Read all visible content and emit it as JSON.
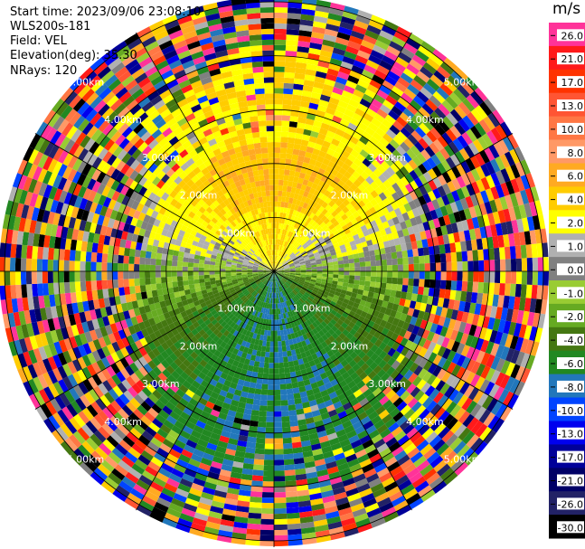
{
  "header": {
    "start_time": "Start time: 2023/09/06 23:08:10",
    "instrument": "WLS200s-181",
    "field": "Field: VEL",
    "elevation": "Elevation(deg): 35.30",
    "nrays": "NRays: 120"
  },
  "colorbar": {
    "unit": "m/s",
    "ticks": [
      "26.0",
      "21.0",
      "17.0",
      "13.0",
      "10.0",
      "8.0",
      "6.0",
      "4.0",
      "2.0",
      "1.0",
      "0.0",
      "-1.0",
      "-2.0",
      "-4.0",
      "-6.0",
      "-8.0",
      "-10.0",
      "-13.0",
      "-17.0",
      "-21.0",
      "-26.0",
      "-30.0"
    ],
    "colors": [
      "#ff3399",
      "#ff1a1a",
      "#ff3300",
      "#ff5533",
      "#ff7744",
      "#ff9966",
      "#ffaa22",
      "#ffcc00",
      "#ffff00",
      "#b0b0b0",
      "#808080",
      "#99cc33",
      "#66aa22",
      "#447711",
      "#228822",
      "#2277bb",
      "#0044ff",
      "#0000ee",
      "#000099",
      "#000066",
      "#222266",
      "#000000"
    ]
  },
  "chart_data": {
    "type": "ppi",
    "field": "VEL",
    "units": "m/s",
    "nrays": 120,
    "range_rings": [
      {
        "label": "1.00km",
        "range_km": 1.0
      },
      {
        "label": "2.00km",
        "range_km": 2.0
      },
      {
        "label": "3.00km",
        "range_km": 3.0
      },
      {
        "label": "4.00km",
        "range_km": 4.0
      },
      {
        "label": "5.00km",
        "range_km": 5.0
      }
    ],
    "max_range_km": 5.1,
    "spokes_deg": [
      0,
      30,
      60,
      90,
      120,
      150,
      180,
      210,
      240,
      270,
      300,
      330
    ],
    "velocity_pattern": [
      {
        "sector": "north",
        "approx_value": 4.0
      },
      {
        "sector": "west/east (near)",
        "approx_value": 1.0
      },
      {
        "sector": "south",
        "approx_value": -6.0
      }
    ]
  }
}
